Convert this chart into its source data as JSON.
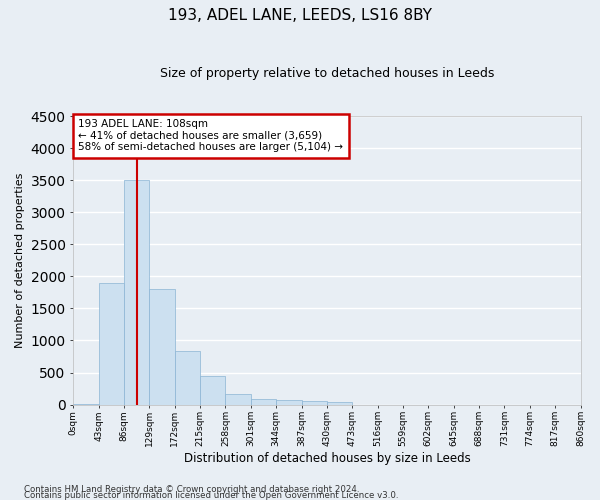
{
  "title": "193, ADEL LANE, LEEDS, LS16 8BY",
  "subtitle": "Size of property relative to detached houses in Leeds",
  "xlabel": "Distribution of detached houses by size in Leeds",
  "ylabel": "Number of detached properties",
  "footer_line1": "Contains HM Land Registry data © Crown copyright and database right 2024.",
  "footer_line2": "Contains public sector information licensed under the Open Government Licence v3.0.",
  "bin_labels": [
    "0sqm",
    "43sqm",
    "86sqm",
    "129sqm",
    "172sqm",
    "215sqm",
    "258sqm",
    "301sqm",
    "344sqm",
    "387sqm",
    "430sqm",
    "473sqm",
    "516sqm",
    "559sqm",
    "602sqm",
    "645sqm",
    "688sqm",
    "731sqm",
    "774sqm",
    "817sqm",
    "860sqm"
  ],
  "bar_heights": [
    10,
    1900,
    3500,
    1800,
    830,
    450,
    160,
    90,
    65,
    55,
    40,
    0,
    0,
    0,
    0,
    0,
    0,
    0,
    0,
    0
  ],
  "bar_color": "#cce0f0",
  "bar_edge_color": "#8ab4d4",
  "background_color": "#e8eef4",
  "grid_color": "#ffffff",
  "ylim": [
    0,
    4500
  ],
  "yticks": [
    0,
    500,
    1000,
    1500,
    2000,
    2500,
    3000,
    3500,
    4000,
    4500
  ],
  "property_line_x": 2.51,
  "annotation_text_line1": "193 ADEL LANE: 108sqm",
  "annotation_text_line2": "← 41% of detached houses are smaller (3,659)",
  "annotation_text_line3": "58% of semi-detached houses are larger (5,104) →",
  "annotation_box_color": "#ffffff",
  "annotation_box_edge_color": "#cc0000",
  "property_line_color": "#cc0000"
}
